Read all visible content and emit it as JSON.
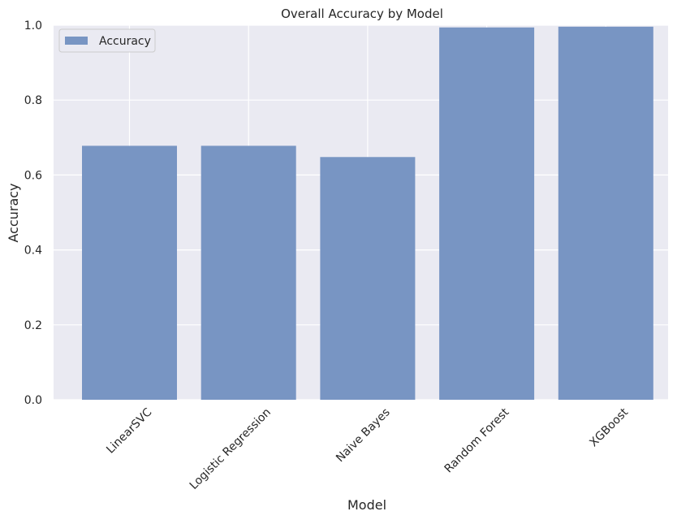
{
  "chart_data": {
    "type": "bar",
    "title": "Overall Accuracy by Model",
    "xlabel": "Model",
    "ylabel": "Accuracy",
    "categories": [
      "LinearSVC",
      "Logistic Regression",
      "Naive Bayes",
      "Random Forest",
      "XGBoost"
    ],
    "series": [
      {
        "name": "Accuracy",
        "values": [
          0.678,
          0.678,
          0.648,
          0.994,
          0.996
        ]
      }
    ],
    "ylim": [
      0,
      1.0
    ],
    "yticks": [
      "0.0",
      "0.2",
      "0.4",
      "0.6",
      "0.8",
      "1.0"
    ],
    "grid": true,
    "legend_position": "top-left",
    "colors": {
      "bar": "#7895c3",
      "plot_background": "#eaeaf2",
      "grid": "#ffffff",
      "text": "#262626"
    }
  }
}
